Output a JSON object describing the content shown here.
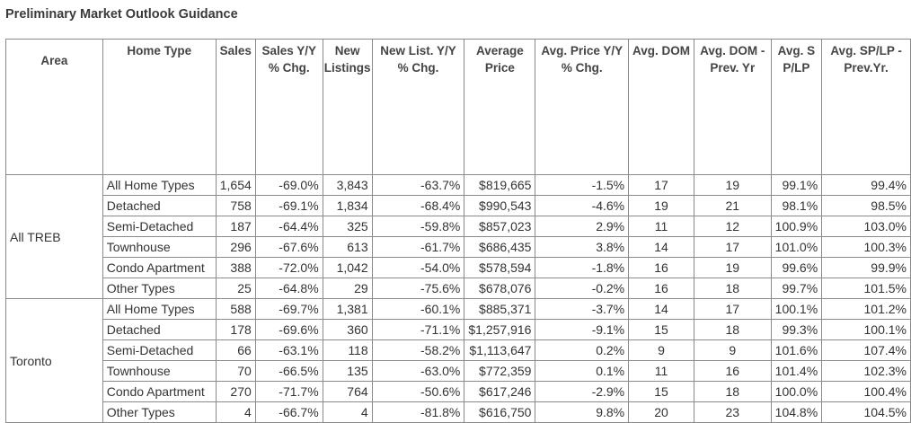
{
  "title": "Preliminary Market Outlook Guidance",
  "headers": [
    "Area",
    "Home Type",
    "Sales",
    "Sales Y/Y % Chg.",
    "New Listings",
    "New List. Y/Y % Chg.",
    "Average Price",
    "Avg. Price Y/Y % Chg.",
    "Avg. DOM",
    "Avg. DOM - Prev. Yr",
    "Avg. S P/LP",
    "Avg. SP/LP - Prev.Yr."
  ],
  "groups": [
    {
      "area": "All TREB",
      "rows": [
        [
          "All Home Types",
          "1,654",
          "-69.0%",
          "3,843",
          "-63.7%",
          "$819,665",
          "-1.5%",
          "17",
          "19",
          "99.1%",
          "99.4%"
        ],
        [
          "Detached",
          "758",
          "-69.1%",
          "1,834",
          "-68.4%",
          "$990,543",
          "-4.6%",
          "19",
          "21",
          "98.1%",
          "98.5%"
        ],
        [
          "Semi-Detached",
          "187",
          "-64.4%",
          "325",
          "-59.8%",
          "$857,023",
          "2.9%",
          "11",
          "12",
          "100.9%",
          "103.0%"
        ],
        [
          "Townhouse",
          "296",
          "-67.6%",
          "613",
          "-61.7%",
          "$686,435",
          "3.8%",
          "14",
          "17",
          "101.0%",
          "100.3%"
        ],
        [
          "Condo Apartment",
          "388",
          "-72.0%",
          "1,042",
          "-54.0%",
          "$578,594",
          "-1.8%",
          "16",
          "19",
          "99.6%",
          "99.9%"
        ],
        [
          "Other Types",
          "25",
          "-64.8%",
          "29",
          "-75.6%",
          "$678,076",
          "-0.2%",
          "16",
          "18",
          "99.7%",
          "101.5%"
        ]
      ]
    },
    {
      "area": "Toronto",
      "rows": [
        [
          "All Home Types",
          "588",
          "-69.7%",
          "1,381",
          "-60.1%",
          "$885,371",
          "-3.7%",
          "14",
          "17",
          "100.1%",
          "101.2%"
        ],
        [
          "Detached",
          "178",
          "-69.6%",
          "360",
          "-71.1%",
          "$1,257,916",
          "-9.1%",
          "15",
          "18",
          "99.3%",
          "100.1%"
        ],
        [
          "Semi-Detached",
          "66",
          "-63.1%",
          "118",
          "-58.2%",
          "$1,113,647",
          "0.2%",
          "9",
          "9",
          "101.6%",
          "107.4%"
        ],
        [
          "Townhouse",
          "70",
          "-66.5%",
          "135",
          "-63.0%",
          "$772,359",
          "0.1%",
          "11",
          "16",
          "101.4%",
          "102.3%"
        ],
        [
          "Condo Apartment",
          "270",
          "-71.7%",
          "764",
          "-50.6%",
          "$617,246",
          "-2.9%",
          "15",
          "18",
          "100.0%",
          "100.4%"
        ],
        [
          "Other Types",
          "4",
          "-66.7%",
          "4",
          "-81.8%",
          "$616,750",
          "9.8%",
          "20",
          "23",
          "104.8%",
          "104.5%"
        ]
      ]
    }
  ]
}
